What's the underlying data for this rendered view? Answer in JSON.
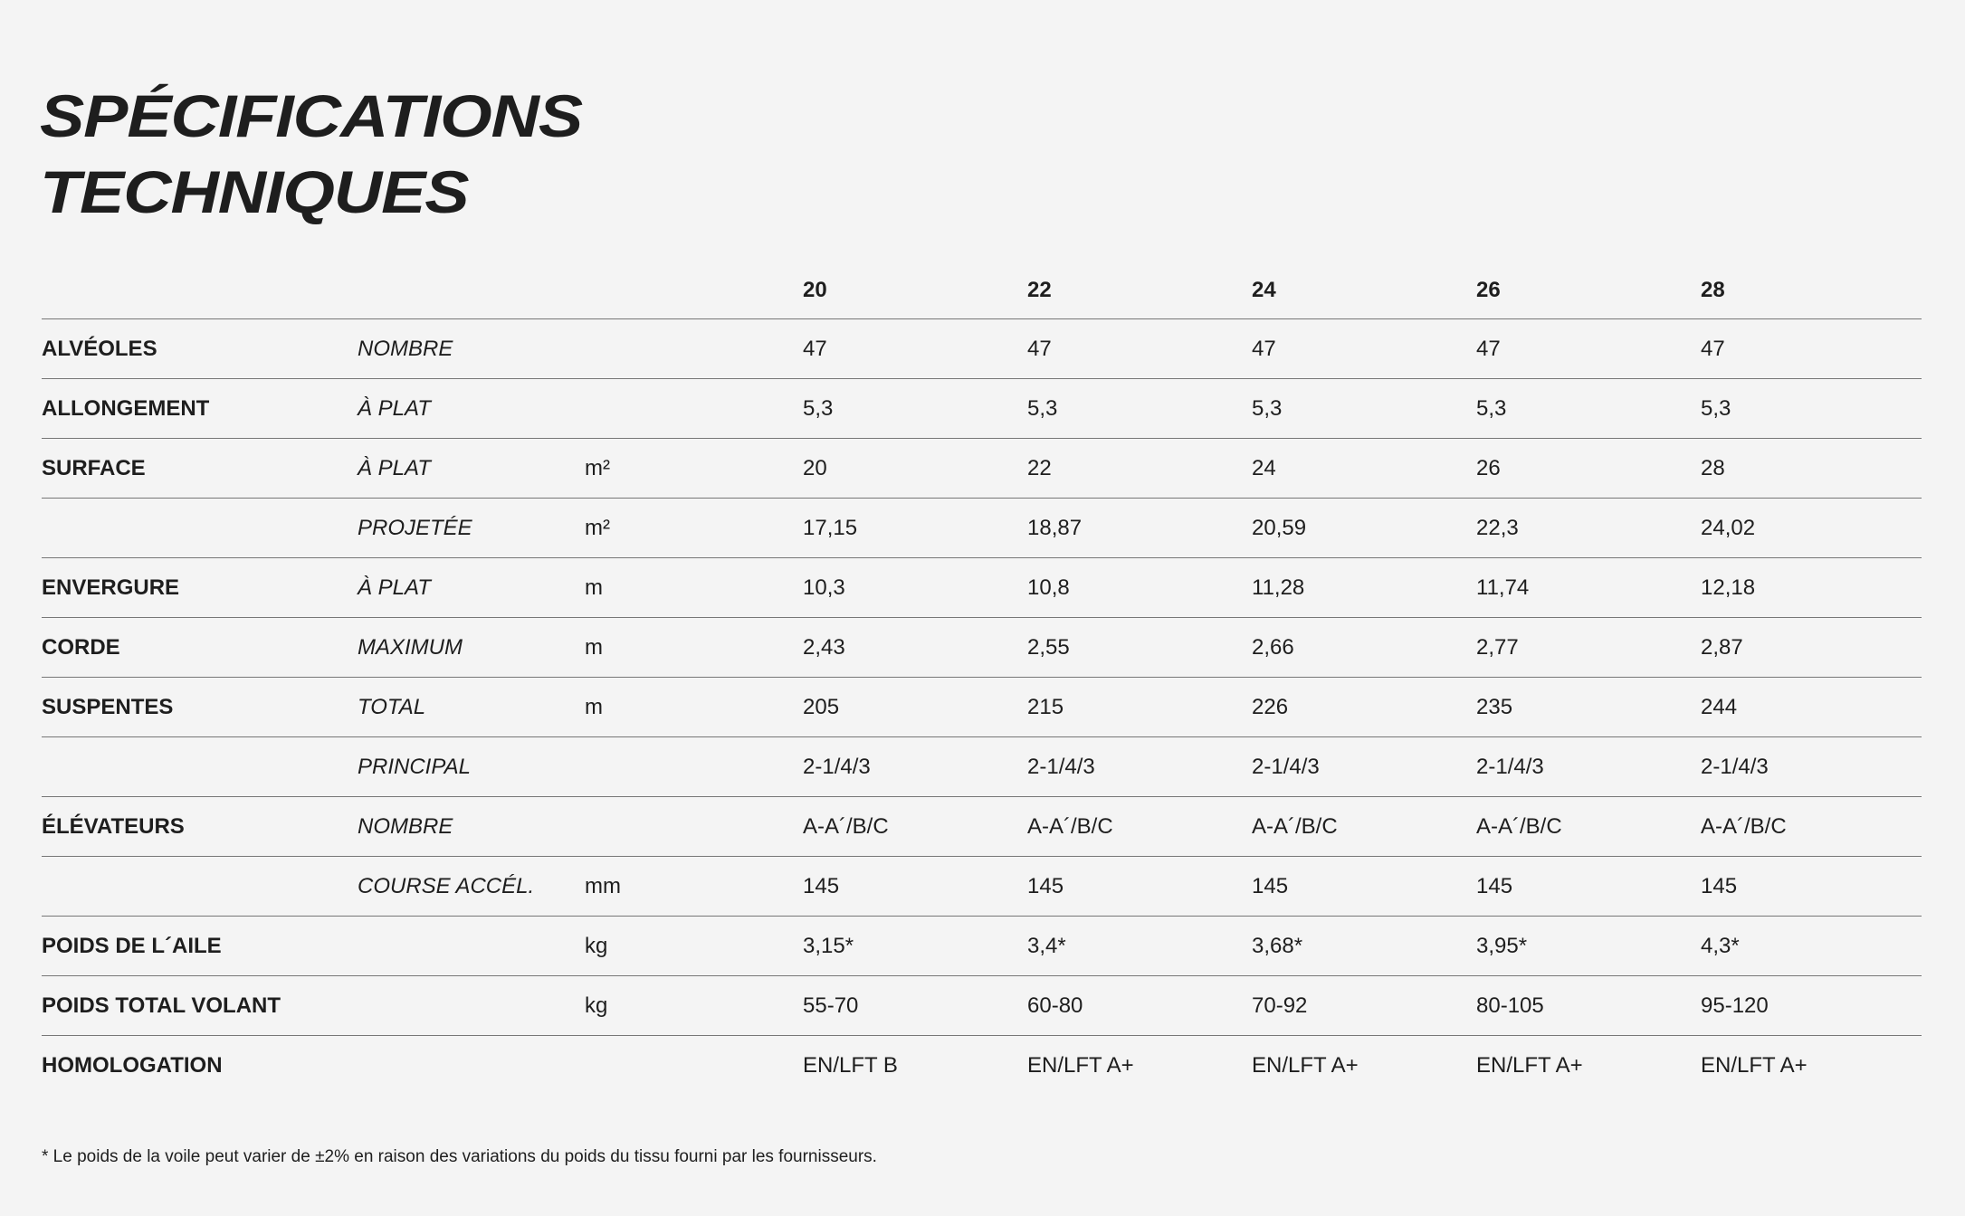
{
  "title": [
    "SPÉCIFICATIONS",
    "TECHNIQUES"
  ],
  "sizes": [
    "20",
    "22",
    "24",
    "26",
    "28"
  ],
  "rows": [
    {
      "label": "ALVÉOLES",
      "sub": "NOMBRE",
      "unit": "",
      "values": [
        "47",
        "47",
        "47",
        "47",
        "47"
      ]
    },
    {
      "label": "ALLONGEMENT",
      "sub": "À PLAT",
      "unit": "",
      "values": [
        "5,3",
        "5,3",
        "5,3",
        "5,3",
        "5,3"
      ]
    },
    {
      "label": "SURFACE",
      "sub": "À PLAT",
      "unit": "m²",
      "values": [
        "20",
        "22",
        "24",
        "26",
        "28"
      ]
    },
    {
      "label": "",
      "sub": "PROJETÉE",
      "unit": "m²",
      "values": [
        "17,15",
        "18,87",
        "20,59",
        "22,3",
        "24,02"
      ]
    },
    {
      "label": "ENVERGURE",
      "sub": "À PLAT",
      "unit": "m",
      "values": [
        "10,3",
        "10,8",
        "11,28",
        "11,74",
        "12,18"
      ]
    },
    {
      "label": "CORDE",
      "sub": "MAXIMUM",
      "unit": "m",
      "values": [
        "2,43",
        "2,55",
        "2,66",
        "2,77",
        "2,87"
      ]
    },
    {
      "label": "SUSPENTES",
      "sub": "TOTAL",
      "unit": "m",
      "values": [
        "205",
        "215",
        "226",
        "235",
        "244"
      ]
    },
    {
      "label": "",
      "sub": "PRINCIPAL",
      "unit": "",
      "values": [
        "2-1/4/3",
        "2-1/4/3",
        "2-1/4/3",
        "2-1/4/3",
        "2-1/4/3"
      ]
    },
    {
      "label": "ÉLÉVATEURS",
      "sub": "NOMBRE",
      "unit": "",
      "values": [
        "A-A´/B/C",
        "A-A´/B/C",
        "A-A´/B/C",
        "A-A´/B/C",
        "A-A´/B/C"
      ]
    },
    {
      "label": "",
      "sub": "COURSE ACCÉL.",
      "unit": "mm",
      "values": [
        "145",
        "145",
        "145",
        "145",
        "145"
      ]
    },
    {
      "label": "POIDS DE L´AILE",
      "sub": "",
      "unit": "kg",
      "values": [
        "3,15*",
        "3,4*",
        "3,68*",
        "3,95*",
        "4,3*"
      ]
    },
    {
      "label": "POIDS TOTAL VOLANT",
      "sub": "",
      "unit": "kg",
      "values": [
        "55-70",
        "60-80",
        "70-92",
        "80-105",
        "95-120"
      ]
    },
    {
      "label": "HOMOLOGATION",
      "sub": "",
      "unit": "",
      "values": [
        "EN/LFT B",
        "EN/LFT A+",
        "EN/LFT A+",
        "EN/LFT A+",
        "EN/LFT A+"
      ]
    }
  ],
  "footnote": "* Le poids de la voile peut varier de ±2% en raison des variations du poids du tissu fourni par les fournisseurs."
}
